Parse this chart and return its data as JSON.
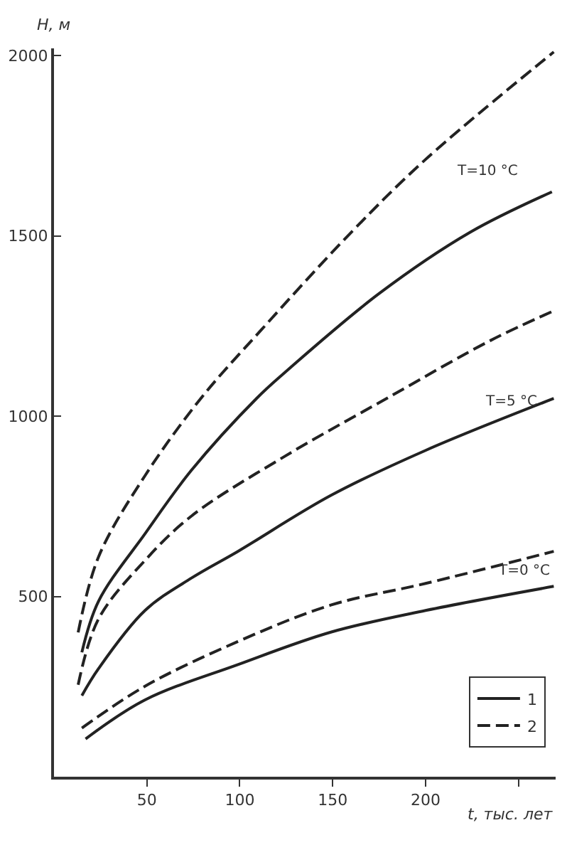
{
  "chart_data": {
    "type": "line",
    "xlabel": "t, тыс. лет",
    "ylabel": "H, м",
    "xlim": [
      0,
      270
    ],
    "ylim": [
      0,
      2020
    ],
    "xticks": [
      50,
      100,
      150,
      200,
      {
        "value": 250,
        "label": null
      }
    ],
    "yticks": [
      500,
      1000,
      1500,
      2000
    ],
    "grid": false,
    "legend": "bottom right",
    "marker": "none",
    "annotations": [
      "T=10 °C",
      "T=5 °C",
      "T=0 °C"
    ],
    "series": [
      {
        "name": "1",
        "color": "#222222",
        "line_style": "solid",
        "x": [
          15,
          24,
          49,
          74,
          109,
          124,
          175,
          224,
          268
        ],
        "values": [
          345,
          487,
          674,
          850,
          1049,
          1120,
          1340,
          1510,
          1622
        ]
      },
      {
        "name": "2",
        "color": "#222222",
        "line_style": "dashed",
        "x": [
          13,
          24,
          49,
          79,
          111,
          160,
          200,
          269
        ],
        "values": [
          400,
          610,
          835,
          1049,
          1236,
          1510,
          1712,
          2010
        ]
      },
      {
        "color": "#222222",
        "line_style": "solid",
        "x": [
          15,
          24,
          49,
          74,
          99,
          149,
          200,
          269
        ],
        "values": [
          225,
          300,
          461,
          551,
          625,
          780,
          905,
          1049
        ]
      },
      {
        "color": "#222222",
        "line_style": "dashed",
        "x": [
          13,
          24,
          49,
          74,
          124,
          179,
          235,
          269
        ],
        "values": [
          255,
          438,
          600,
          723,
          888,
          1049,
          1210,
          1292
        ]
      },
      {
        "color": "#222222",
        "line_style": "solid",
        "x": [
          17,
          49,
          99,
          149,
          200,
          269
        ],
        "values": [
          105,
          213,
          311,
          401,
          461,
          528
        ]
      },
      {
        "color": "#222222",
        "line_style": "dashed",
        "x": [
          15,
          49,
          99,
          149,
          200,
          269
        ],
        "values": [
          135,
          251,
          375,
          476,
          536,
          625
        ]
      }
    ]
  }
}
